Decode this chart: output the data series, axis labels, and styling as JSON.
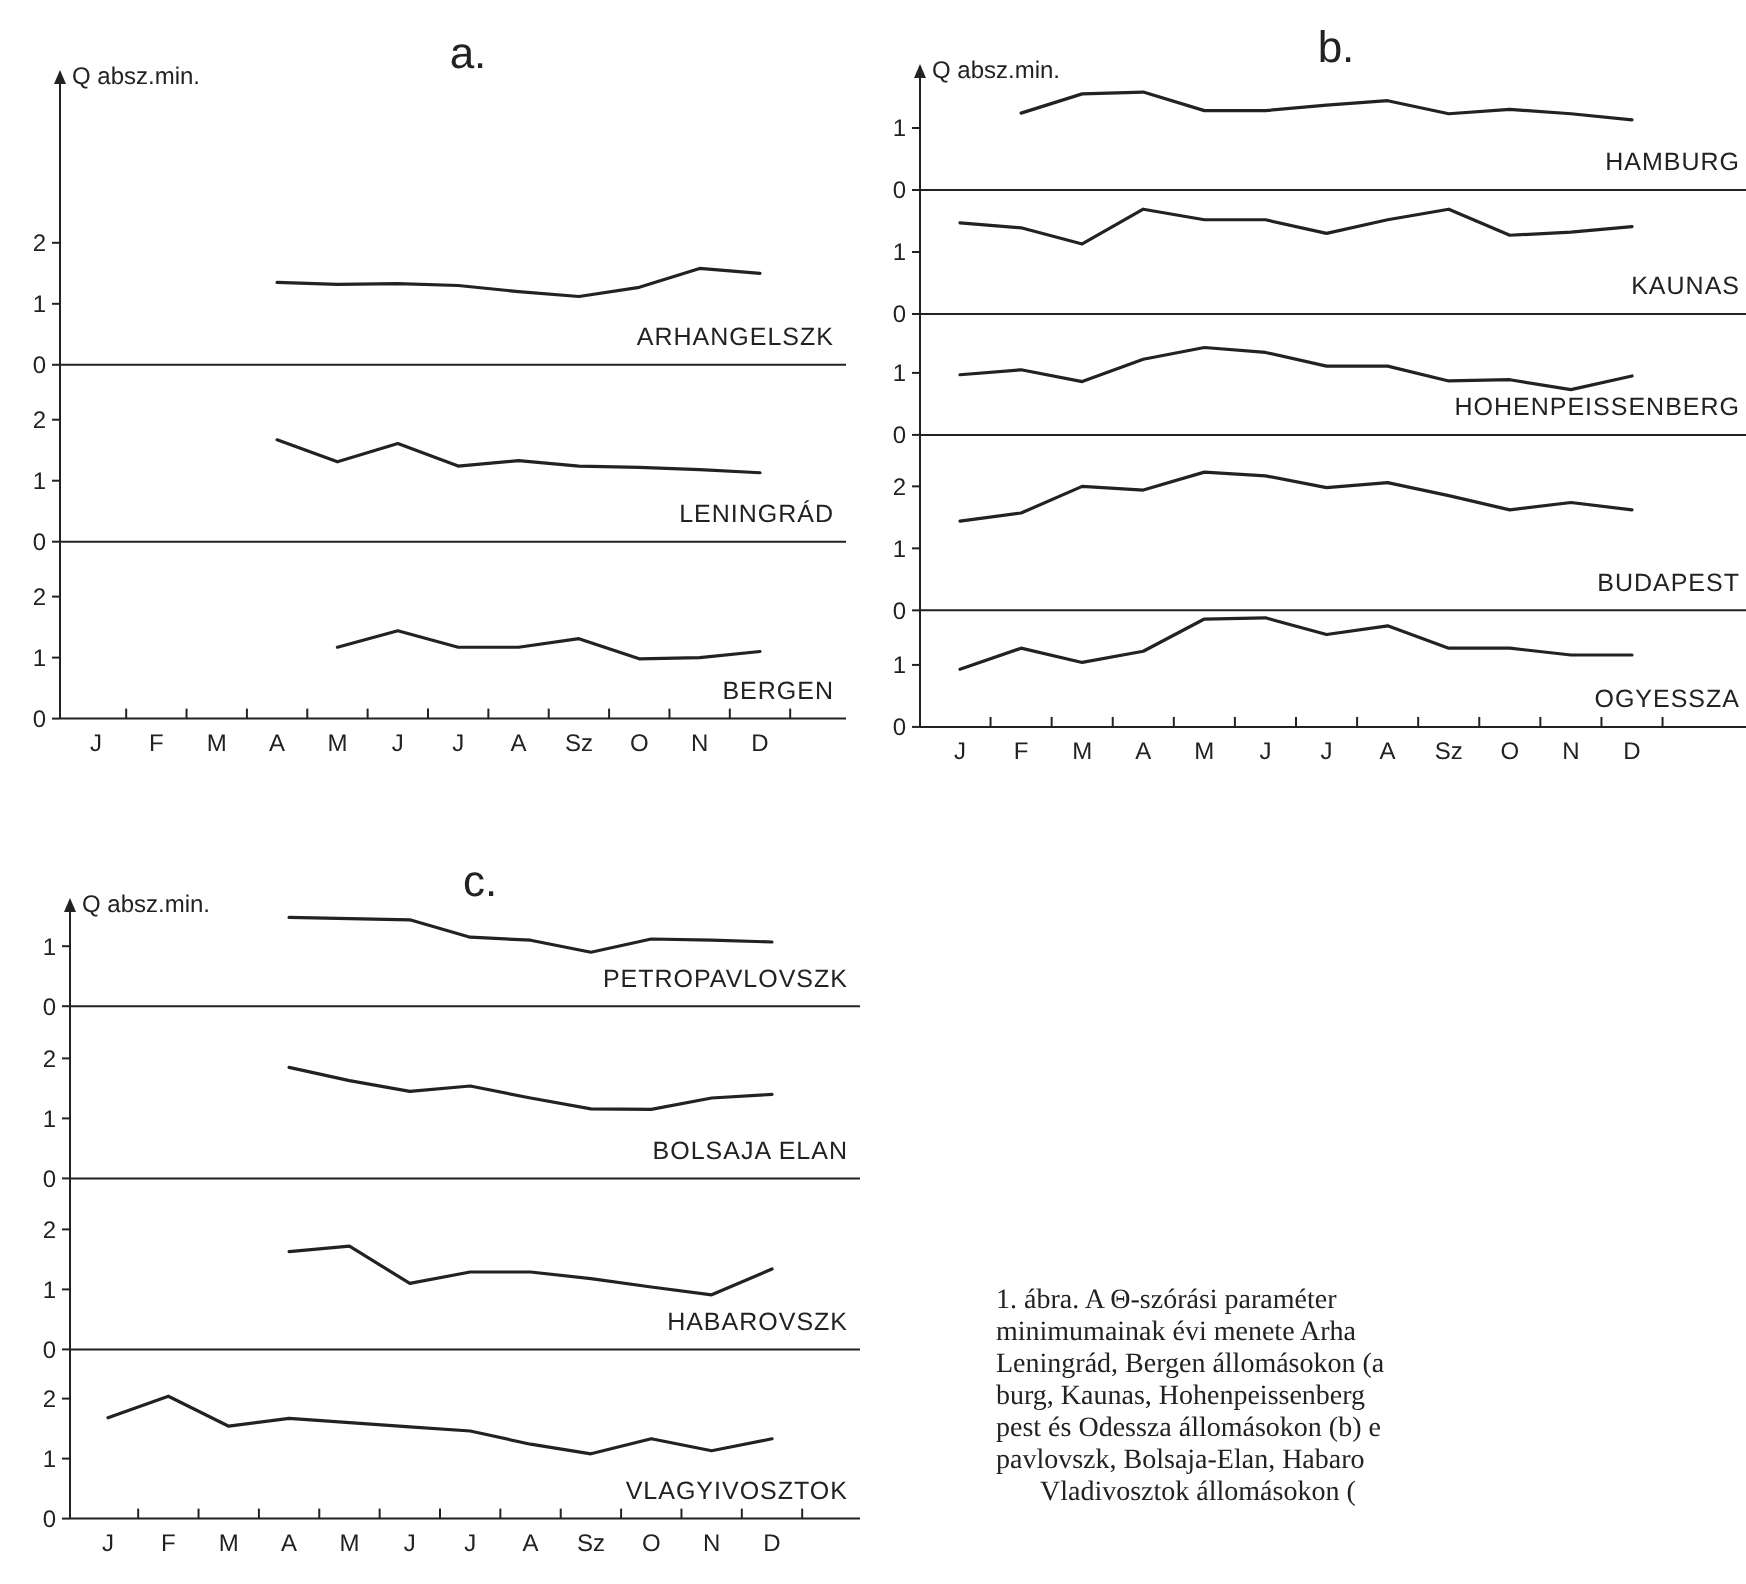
{
  "chart_data": [
    {
      "type": "line",
      "title": "a.",
      "ylabel": "Q absz.min.",
      "categories": [
        null,
        null,
        null,
        null,
        null,
        null,
        null,
        null,
        null,
        null,
        null,
        null
      ],
      "ylim": [
        0,
        4.8
      ],
      "yticks": [
        0,
        1,
        2
      ],
      "tick_labels": "y",
      "series": [
        {
          "name": "ARHANGELSZK",
          "color": "#222222",
          "values": [
            null,
            null,
            null,
            1.35,
            1.32,
            1.33,
            1.3,
            1.2,
            1.12,
            1.27,
            1.58,
            1.5
          ]
        }
      ]
    },
    {
      "type": "line",
      "categories": [
        null,
        null,
        null,
        null,
        null,
        null,
        null,
        null,
        null,
        null,
        null,
        null
      ],
      "ylim": [
        0,
        2.9
      ],
      "yticks": [
        0,
        1,
        2
      ],
      "tick_labels": "y",
      "series": [
        {
          "name": "LENINGRÁD",
          "color": "#222222",
          "values": [
            null,
            null,
            null,
            1.67,
            1.31,
            1.61,
            1.24,
            1.33,
            1.24,
            1.22,
            1.18,
            1.13
          ]
        }
      ]
    },
    {
      "type": "line",
      "categories": [
        "J",
        "F",
        "M",
        "A",
        "M",
        "J",
        "J",
        "A",
        "Sz",
        "O",
        "N",
        "D"
      ],
      "ylim": [
        0,
        2.9
      ],
      "yticks": [
        0,
        1,
        2
      ],
      "series": [
        {
          "name": "BERGEN",
          "color": "#222222",
          "values": [
            null,
            null,
            null,
            null,
            1.17,
            1.44,
            1.17,
            1.17,
            1.31,
            0.98,
            1.0,
            1.1
          ]
        }
      ]
    },
    {
      "type": "line",
      "title": "b.",
      "ylabel": "Q absz.min.",
      "categories": [
        null,
        null,
        null,
        null,
        null,
        null,
        null,
        null,
        null,
        null,
        null,
        null
      ],
      "ylim": [
        0,
        2
      ],
      "yticks": [
        0,
        1
      ],
      "tick_labels": "y",
      "series": [
        {
          "name": "HAMBURG",
          "color": "#222222",
          "values": [
            null,
            1.24,
            1.55,
            1.58,
            1.28,
            1.28,
            1.37,
            1.44,
            1.23,
            1.3,
            1.23,
            1.13
          ]
        }
      ]
    },
    {
      "type": "line",
      "categories": [
        null,
        null,
        null,
        null,
        null,
        null,
        null,
        null,
        null,
        null,
        null,
        null
      ],
      "ylim": [
        0,
        2
      ],
      "yticks": [
        0,
        1
      ],
      "tick_labels": "y",
      "series": [
        {
          "name": "KAUNAS",
          "color": "#222222",
          "values": [
            1.47,
            1.39,
            1.13,
            1.69,
            1.52,
            1.52,
            1.3,
            1.52,
            1.69,
            1.27,
            1.32,
            1.41
          ]
        }
      ]
    },
    {
      "type": "line",
      "categories": [
        null,
        null,
        null,
        null,
        null,
        null,
        null,
        null,
        null,
        null,
        null,
        null
      ],
      "ylim": [
        0,
        1.95
      ],
      "yticks": [
        0,
        1
      ],
      "tick_labels": "y",
      "series": [
        {
          "name": "HOHENPEISSENBERG",
          "color": "#222222",
          "values": [
            0.97,
            1.05,
            0.86,
            1.22,
            1.41,
            1.33,
            1.11,
            1.11,
            0.87,
            0.89,
            0.73,
            0.95
          ]
        }
      ]
    },
    {
      "type": "line",
      "categories": [
        null,
        null,
        null,
        null,
        null,
        null,
        null,
        null,
        null,
        null,
        null,
        null
      ],
      "ylim": [
        0,
        2.83
      ],
      "yticks": [
        0,
        1,
        2
      ],
      "tick_labels": "y",
      "series": [
        {
          "name": "BUDAPEST",
          "color": "#222222",
          "values": [
            1.44,
            1.57,
            2.0,
            1.94,
            2.23,
            2.17,
            1.98,
            2.06,
            1.85,
            1.62,
            1.74,
            1.62
          ]
        }
      ]
    },
    {
      "type": "line",
      "categories": [
        "J",
        "F",
        "M",
        "A",
        "M",
        "J",
        "J",
        "A",
        "Sz",
        "O",
        "N",
        "D"
      ],
      "ylim": [
        0,
        1.88
      ],
      "yticks": [
        0,
        1
      ],
      "series": [
        {
          "name": "OGYESSZA",
          "color": "#222222",
          "values": [
            0.93,
            1.27,
            1.04,
            1.22,
            1.74,
            1.76,
            1.49,
            1.63,
            1.27,
            1.27,
            1.16,
            1.16
          ]
        }
      ]
    },
    {
      "type": "line",
      "title": "c.",
      "ylabel": "Q absz.min.",
      "categories": [
        null,
        null,
        null,
        null,
        null,
        null,
        null,
        null,
        null,
        null,
        null,
        null
      ],
      "ylim": [
        0,
        1.77
      ],
      "yticks": [
        0,
        1
      ],
      "tick_labels": "y",
      "series": [
        {
          "name": "PETROPAVLOVSZK",
          "color": "#222222",
          "values": [
            null,
            null,
            null,
            1.48,
            1.46,
            1.44,
            1.15,
            1.1,
            0.9,
            1.12,
            1.1,
            1.07
          ]
        }
      ]
    },
    {
      "type": "line",
      "categories": [
        null,
        null,
        null,
        null,
        null,
        null,
        null,
        null,
        null,
        null,
        null,
        null
      ],
      "ylim": [
        0,
        2.87
      ],
      "yticks": [
        0,
        1,
        2
      ],
      "tick_labels": "y",
      "series": [
        {
          "name": "BOLSAJA ELAN",
          "color": "#222222",
          "values": [
            null,
            null,
            null,
            1.85,
            1.63,
            1.45,
            1.54,
            1.34,
            1.16,
            1.15,
            1.34,
            1.4
          ]
        }
      ]
    },
    {
      "type": "line",
      "categories": [
        null,
        null,
        null,
        null,
        null,
        null,
        null,
        null,
        null,
        null,
        null,
        null
      ],
      "ylim": [
        0,
        2.85
      ],
      "yticks": [
        0,
        1,
        2
      ],
      "tick_labels": "y",
      "series": [
        {
          "name": "HABAROVSZK",
          "color": "#222222",
          "values": [
            null,
            null,
            null,
            1.63,
            1.72,
            1.1,
            1.29,
            1.29,
            1.18,
            1.04,
            0.91,
            1.34
          ]
        }
      ]
    },
    {
      "type": "line",
      "categories": [
        "J",
        "F",
        "M",
        "A",
        "M",
        "J",
        "J",
        "A",
        "Sz",
        "O",
        "N",
        "D"
      ],
      "ylim": [
        0,
        2.82
      ],
      "yticks": [
        0,
        1,
        2
      ],
      "series": [
        {
          "name": "VLAGYIVOSZTOK",
          "color": "#222222",
          "values": [
            1.68,
            2.04,
            1.54,
            1.67,
            1.6,
            1.53,
            1.46,
            1.24,
            1.08,
            1.33,
            1.13,
            1.33
          ]
        }
      ]
    },
    {
      "type": "other",
      "annotations": [
        "1. ábra. A Θ-szórási paraméter",
        "minimumainak évi menete Arha",
        "Leningrád, Bergen állomásokon (a",
        "burg, Kaunas, Hohenpeissenberg",
        "pest és Odessza állomásokon (b) e",
        "pavlovszk, Bolsaja-Elan, Habaro",
        "Vladivosztok állomásokon ("
      ]
    }
  ]
}
